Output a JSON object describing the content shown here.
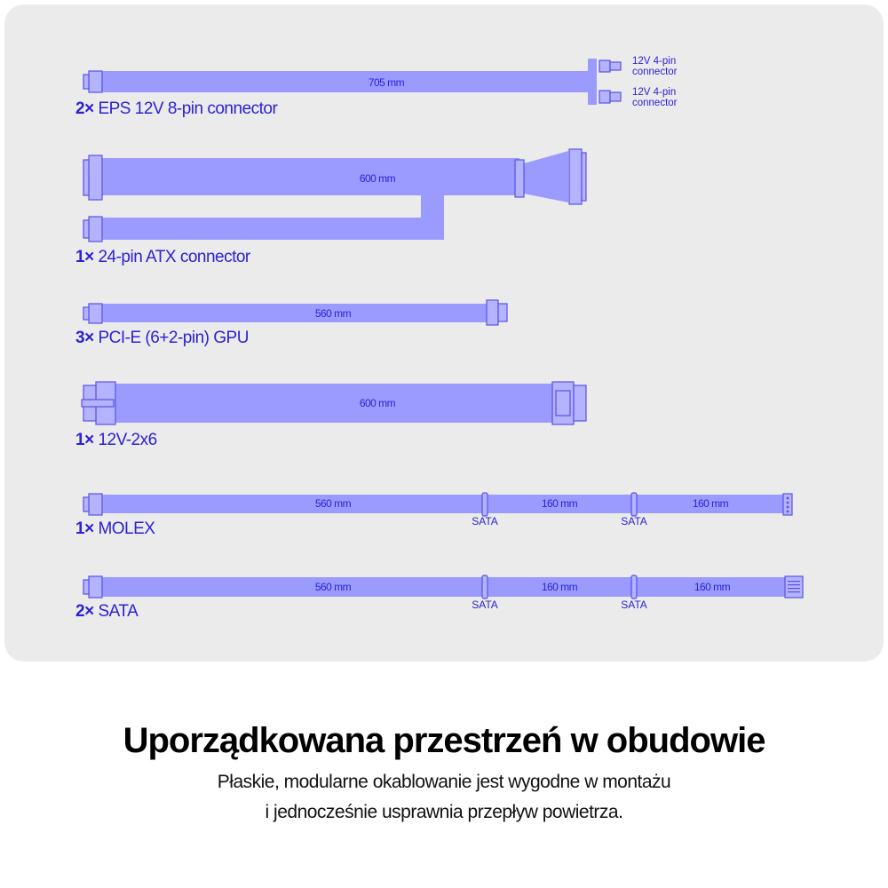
{
  "colors": {
    "cable": "#9b9bff",
    "text": "#2b22d6",
    "panel": "#ebebeb"
  },
  "cables": [
    {
      "qty": "2×",
      "name": "EPS 12V 8-pin connector",
      "lengths": [
        "705 mm"
      ],
      "ends": [
        "12V 4-pin connector",
        "12V 4-pin connector"
      ]
    },
    {
      "qty": "1×",
      "name": "24-pin ATX connector",
      "lengths": [
        "600 mm"
      ]
    },
    {
      "qty": "3×",
      "name": "PCI-E (6+2-pin) GPU",
      "lengths": [
        "560 mm"
      ]
    },
    {
      "qty": "1×",
      "name": "12V-2x6",
      "lengths": [
        "600 mm"
      ]
    },
    {
      "qty": "1×",
      "name": "MOLEX",
      "lengths": [
        "560 mm",
        "160 mm",
        "160 mm"
      ],
      "taps": [
        "SATA",
        "SATA"
      ]
    },
    {
      "qty": "2×",
      "name": "SATA",
      "lengths": [
        "560 mm",
        "160 mm",
        "160 mm"
      ],
      "taps": [
        "SATA",
        "SATA"
      ]
    }
  ],
  "ends": {
    "line1": "12V 4-pin",
    "line2": "connector"
  },
  "heading": "Uporządkowana przestrzeń w obudowie",
  "subtitle": [
    "Płaskie, modularne okablowanie jest wygodne w montażu",
    "i jednocześnie usprawnia przepływ powietrza."
  ]
}
